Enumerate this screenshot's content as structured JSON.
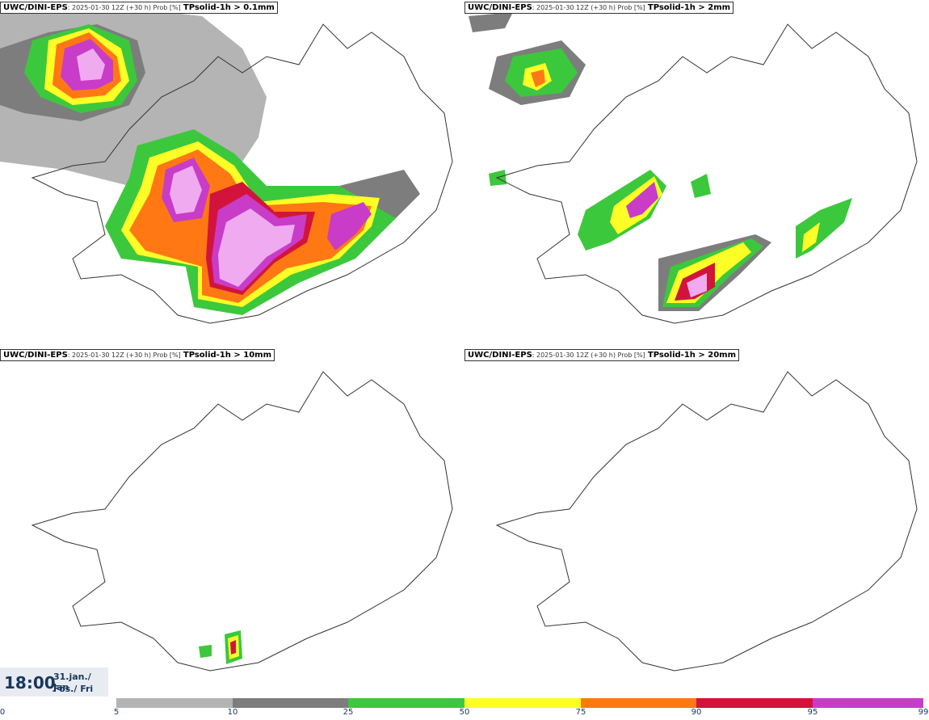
{
  "panels": [
    {
      "source": "UWC/DINI-EPS",
      "meta": ": 2025-01-30 12Z (+30 h) Prob [%]",
      "param": "TPsolid-1h > 0.1mm"
    },
    {
      "source": "UWC/DINI-EPS",
      "meta": ": 2025-01-30 12Z (+30 h) Prob [%]",
      "param": "TPsolid-1h > 2mm"
    },
    {
      "source": "UWC/DINI-EPS",
      "meta": ": 2025-01-30 12Z (+30 h) Prob [%]",
      "param": "TPsolid-1h > 10mm"
    },
    {
      "source": "UWC/DINI-EPS",
      "meta": ": 2025-01-30 12Z (+30 h) Prob [%]",
      "param": "TPsolid-1h > 20mm"
    }
  ],
  "valid_time": {
    "time": "18:00",
    "date": "31.jan./ Jan",
    "day": "Fös./ Fri"
  },
  "legend": {
    "ticks": [
      "0",
      "5",
      "10",
      "25",
      "50",
      "75",
      "90",
      "95",
      "99"
    ],
    "colors": [
      "#b4b4b4",
      "#7d7d7d",
      "#3cc83c",
      "#ffff28",
      "#ff7814",
      "#d2143c",
      "#c83cc8",
      "#f0aaf0"
    ]
  }
}
